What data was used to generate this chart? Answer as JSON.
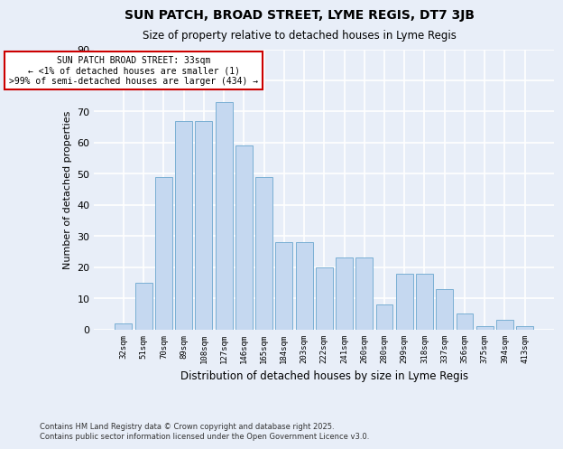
{
  "title": "SUN PATCH, BROAD STREET, LYME REGIS, DT7 3JB",
  "subtitle": "Size of property relative to detached houses in Lyme Regis",
  "xlabel": "Distribution of detached houses by size in Lyme Regis",
  "ylabel": "Number of detached properties",
  "categories": [
    "32sqm",
    "51sqm",
    "70sqm",
    "89sqm",
    "108sqm",
    "127sqm",
    "146sqm",
    "165sqm",
    "184sqm",
    "203sqm",
    "222sqm",
    "241sqm",
    "260sqm",
    "280sqm",
    "299sqm",
    "318sqm",
    "337sqm",
    "356sqm",
    "375sqm",
    "394sqm",
    "413sqm"
  ],
  "values": [
    2,
    15,
    49,
    67,
    67,
    73,
    59,
    49,
    28,
    28,
    20,
    23,
    23,
    8,
    18,
    18,
    13,
    5,
    1,
    3,
    1
  ],
  "bar_color": "#c5d8f0",
  "bar_edge_color": "#7aafd4",
  "background_color": "#e8eef8",
  "grid_color": "#ffffff",
  "annotation_box_text": "SUN PATCH BROAD STREET: 33sqm\n← <1% of detached houses are smaller (1)\n>99% of semi-detached houses are larger (434) →",
  "annotation_box_color": "#ffffff",
  "annotation_box_edge_color": "#cc0000",
  "footnote": "Contains HM Land Registry data © Crown copyright and database right 2025.\nContains public sector information licensed under the Open Government Licence v3.0.",
  "ylim": [
    0,
    90
  ],
  "yticks": [
    0,
    10,
    20,
    30,
    40,
    50,
    60,
    70,
    80,
    90
  ]
}
